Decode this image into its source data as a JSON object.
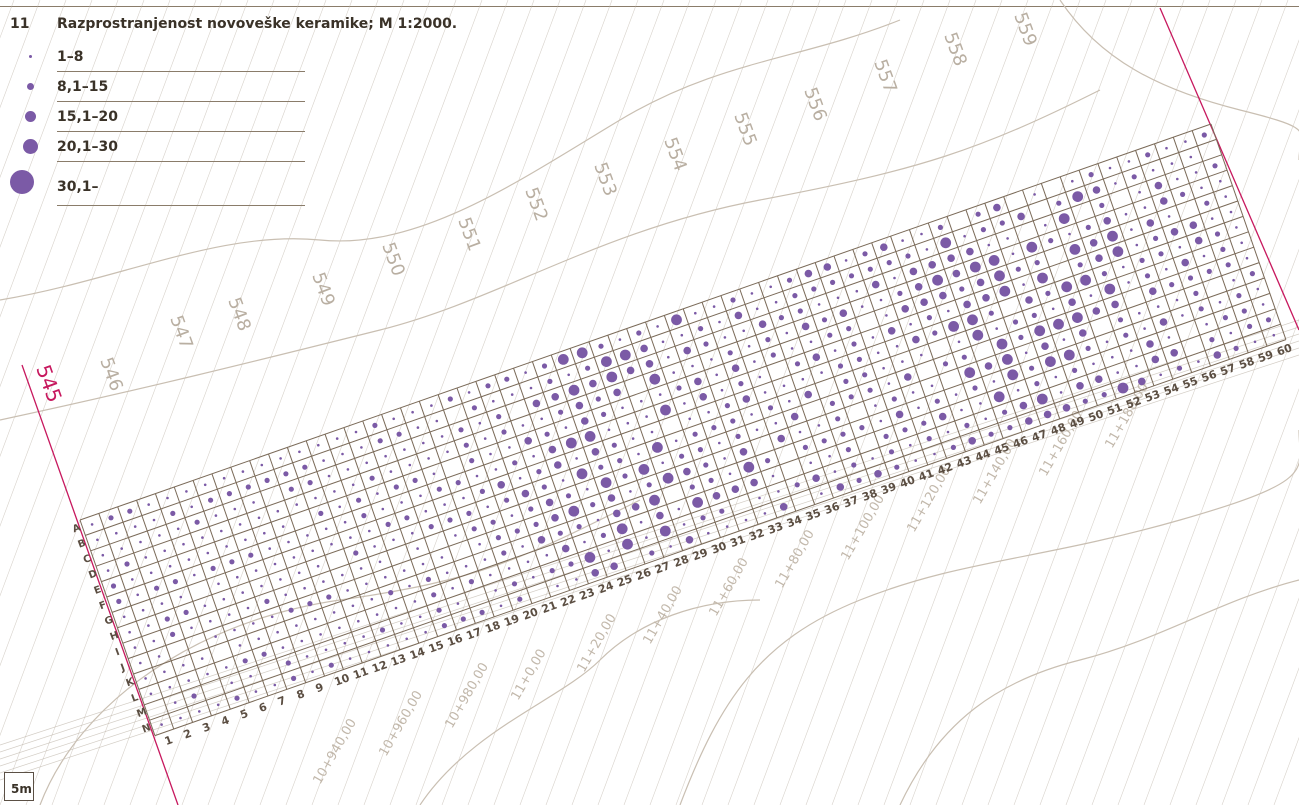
{
  "figure": {
    "number": "11",
    "title": "Razprostranjenost novoveške keramike; M 1:2000."
  },
  "legend": [
    {
      "label": "1–8",
      "class": 1
    },
    {
      "label": "8,1–15",
      "class": 2
    },
    {
      "label": "15,1–20",
      "class": 3
    },
    {
      "label": "20,1–30",
      "class": 4
    },
    {
      "label": "30,1–",
      "class": 5
    }
  ],
  "colors": {
    "dot": "#7b5aa6",
    "grid": "#7a6a58",
    "contour": "#c9bfb2",
    "section_line": "#b7ada0",
    "highlight_line": "#c7185e",
    "label": "#5b4e42"
  },
  "grid": {
    "columns": [
      "1",
      "2",
      "3",
      "4",
      "5",
      "6",
      "7",
      "8",
      "9",
      "10",
      "11",
      "12",
      "13",
      "14",
      "15",
      "16",
      "17",
      "18",
      "19",
      "20",
      "21",
      "22",
      "23",
      "24",
      "25",
      "26",
      "27",
      "28",
      "29",
      "30",
      "31",
      "32",
      "33",
      "34",
      "35",
      "36",
      "37",
      "38",
      "39",
      "40",
      "41",
      "42",
      "43",
      "44",
      "45",
      "46",
      "47",
      "48",
      "49",
      "50",
      "51",
      "52",
      "53",
      "54",
      "55",
      "56",
      "57",
      "58",
      "59",
      "60"
    ],
    "rows": [
      "A",
      "B",
      "C",
      "D",
      "E",
      "F",
      "G",
      "H",
      "I",
      "J",
      "K",
      "L",
      "M",
      "N"
    ]
  },
  "contour_labels": [
    "545",
    "546",
    "547",
    "548",
    "549",
    "550",
    "551",
    "552",
    "553",
    "554",
    "555",
    "556",
    "557",
    "558",
    "559"
  ],
  "chainage_labels": [
    "10+940,00",
    "10+960,00",
    "10+980,00",
    "11+0,00",
    "11+20,00",
    "11+40,00",
    "11+60,00",
    "11+80,00",
    "11+100,00",
    "11+120,00",
    "11+140,00",
    "11+160,00",
    "11+180,00"
  ],
  "scale_label": "5m"
}
